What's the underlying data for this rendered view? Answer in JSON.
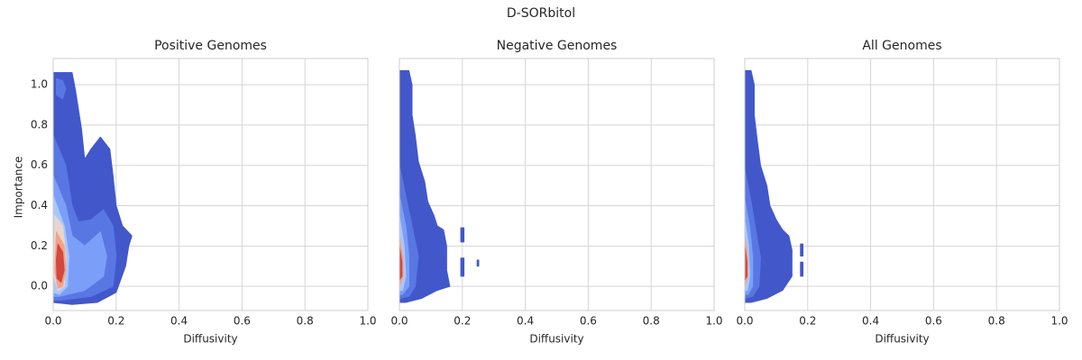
{
  "title": "D-SORbitol",
  "chart_data": [
    {
      "type": "contour",
      "title": "Positive Genomes",
      "xlabel": "Diffusivity",
      "ylabel": "Importance",
      "xlim": [
        0,
        1
      ],
      "ylim": [
        -0.12,
        1.13
      ],
      "xticks": [
        {
          "value": 0,
          "label": "0.0"
        },
        0.2,
        0.4,
        0.6,
        0.8,
        {
          "value": 1,
          "label": "1.0"
        }
      ],
      "yticks": [
        {
          "value": 0,
          "label": "0.0"
        },
        0.2,
        0.4,
        0.6,
        0.8,
        {
          "value": 1,
          "label": "1.0"
        }
      ],
      "grid": true,
      "levels": [
        {
          "color": "#4257c9",
          "polygons": [
            {
              "x": [
                0.0,
                0.06,
                0.07,
                0.09,
                0.1,
                0.12,
                0.15,
                0.18,
                0.19,
                0.2,
                0.22,
                0.25,
                0.24,
                0.23,
                0.2,
                0.14,
                0.06,
                0.0
              ],
              "y": [
                1.06,
                1.06,
                0.98,
                0.78,
                0.63,
                0.68,
                0.74,
                0.68,
                0.55,
                0.4,
                0.3,
                0.25,
                0.2,
                0.1,
                -0.03,
                -0.08,
                -0.09,
                -0.08
              ]
            }
          ]
        },
        {
          "color": "#5977e3",
          "polygons": [
            {
              "x": [
                0.0,
                0.04,
                0.06,
                0.08,
                0.12,
                0.16,
                0.19,
                0.2,
                0.19,
                0.12,
                0.02,
                0.0
              ],
              "y": [
                0.75,
                0.6,
                0.4,
                0.32,
                0.33,
                0.38,
                0.3,
                0.15,
                0.0,
                -0.05,
                -0.07,
                -0.07
              ]
            },
            {
              "x": [
                0.01,
                0.03,
                0.04,
                0.03,
                0.01
              ],
              "y": [
                1.03,
                1.02,
                0.98,
                0.93,
                0.95
              ]
            }
          ]
        },
        {
          "color": "#7b9ff9",
          "polygons": [
            {
              "x": [
                0.0,
                0.04,
                0.06,
                0.1,
                0.15,
                0.17,
                0.16,
                0.1,
                0.02,
                0.0
              ],
              "y": [
                0.55,
                0.4,
                0.25,
                0.2,
                0.27,
                0.15,
                0.05,
                -0.02,
                -0.05,
                -0.05
              ]
            }
          ]
        },
        {
          "color": "#aac7fd",
          "polygons": [
            {
              "x": [
                0.0,
                0.035,
                0.05,
                0.045,
                0.02,
                0.0
              ],
              "y": [
                0.45,
                0.3,
                0.15,
                0.0,
                -0.04,
                -0.03
              ]
            }
          ]
        },
        {
          "color": "#e8d6cc",
          "polygons": [
            {
              "x": [
                0.005,
                0.03,
                0.04,
                0.035,
                0.015,
                0.002
              ],
              "y": [
                0.35,
                0.3,
                0.15,
                0.0,
                -0.02,
                0.05
              ]
            }
          ]
        },
        {
          "color": "#f4a285",
          "polygons": [
            {
              "x": [
                0.01,
                0.035,
                0.04,
                0.03,
                0.015,
                0.005
              ],
              "y": [
                0.27,
                0.2,
                0.08,
                0.0,
                -0.01,
                0.08
              ]
            }
          ]
        },
        {
          "color": "#d1493f",
          "polygons": [
            {
              "x": [
                0.015,
                0.03,
                0.035,
                0.025,
                0.012,
                0.01
              ],
              "y": [
                0.21,
                0.17,
                0.08,
                0.02,
                0.04,
                0.13
              ]
            }
          ]
        }
      ]
    },
    {
      "type": "contour",
      "title": "Negative Genomes",
      "xlabel": "Diffusivity",
      "xlim": [
        0,
        1
      ],
      "ylim": [
        -0.12,
        1.13
      ],
      "sharey": true,
      "xticks": [
        {
          "value": 0,
          "label": "0.0"
        },
        0.2,
        0.4,
        0.6,
        0.8,
        {
          "value": 1,
          "label": "1.0"
        }
      ],
      "grid": true,
      "levels": [
        {
          "color": "#4257c9",
          "polygons": [
            {
              "x": [
                0.0,
                0.03,
                0.04,
                0.04,
                0.05,
                0.06,
                0.08,
                0.09,
                0.11,
                0.12,
                0.14,
                0.15,
                0.15,
                0.16,
                0.12,
                0.07,
                0.02,
                0.0
              ],
              "y": [
                1.07,
                1.07,
                1.0,
                0.85,
                0.75,
                0.62,
                0.52,
                0.42,
                0.35,
                0.3,
                0.28,
                0.2,
                0.08,
                0.0,
                -0.02,
                -0.06,
                -0.08,
                -0.08
              ]
            },
            {
              "x": [
                0.195,
                0.205,
                0.205,
                0.195
              ],
              "y": [
                0.29,
                0.29,
                0.22,
                0.22
              ]
            },
            {
              "x": [
                0.195,
                0.205,
                0.205,
                0.195
              ],
              "y": [
                0.14,
                0.14,
                0.05,
                0.05
              ]
            },
            {
              "x": [
                0.247,
                0.252,
                0.252,
                0.247
              ],
              "y": [
                0.13,
                0.13,
                0.1,
                0.1
              ]
            }
          ]
        },
        {
          "color": "#5977e3",
          "polygons": [
            {
              "x": [
                0.0,
                0.02,
                0.04,
                0.06,
                0.05,
                0.03,
                0.0
              ],
              "y": [
                0.6,
                0.45,
                0.3,
                0.15,
                0.0,
                -0.05,
                -0.06
              ]
            }
          ]
        },
        {
          "color": "#7b9ff9",
          "polygons": [
            {
              "x": [
                0.0,
                0.02,
                0.03,
                0.03,
                0.01,
                0.0
              ],
              "y": [
                0.45,
                0.3,
                0.15,
                0.0,
                -0.04,
                -0.04
              ]
            }
          ]
        },
        {
          "color": "#aac7fd",
          "polygons": [
            {
              "x": [
                0.0,
                0.015,
                0.02,
                0.01,
                0.0
              ],
              "y": [
                0.35,
                0.2,
                0.05,
                -0.02,
                -0.02
              ]
            }
          ]
        },
        {
          "color": "#f4a285",
          "polygons": [
            {
              "x": [
                0.0,
                0.01,
                0.012,
                0.0
              ],
              "y": [
                0.25,
                0.15,
                0.05,
                0.0
              ]
            }
          ]
        },
        {
          "color": "#d1493f",
          "polygons": [
            {
              "x": [
                0.0,
                0.008,
                0.008,
                0.0
              ],
              "y": [
                0.2,
                0.12,
                0.05,
                0.03
              ]
            }
          ]
        }
      ]
    },
    {
      "type": "contour",
      "title": "All Genomes",
      "xlabel": "Diffusivity",
      "xlim": [
        0,
        1
      ],
      "ylim": [
        -0.12,
        1.13
      ],
      "sharey": true,
      "xticks": [
        {
          "value": 0,
          "label": "0.0"
        },
        0.2,
        0.4,
        0.6,
        0.8,
        {
          "value": 1,
          "label": "1.0"
        }
      ],
      "grid": true,
      "levels": [
        {
          "color": "#4257c9",
          "polygons": [
            {
              "x": [
                0.0,
                0.02,
                0.03,
                0.03,
                0.04,
                0.05,
                0.07,
                0.08,
                0.1,
                0.12,
                0.14,
                0.15,
                0.15,
                0.12,
                0.07,
                0.02,
                0.0
              ],
              "y": [
                1.07,
                1.07,
                1.0,
                0.85,
                0.72,
                0.6,
                0.5,
                0.4,
                0.33,
                0.28,
                0.25,
                0.18,
                0.05,
                -0.02,
                -0.06,
                -0.08,
                -0.08
              ]
            },
            {
              "x": [
                0.177,
                0.185,
                0.185,
                0.177
              ],
              "y": [
                0.21,
                0.21,
                0.15,
                0.15
              ]
            },
            {
              "x": [
                0.177,
                0.185,
                0.185,
                0.177
              ],
              "y": [
                0.12,
                0.12,
                0.05,
                0.05
              ]
            }
          ]
        },
        {
          "color": "#5977e3",
          "polygons": [
            {
              "x": [
                0.0,
                0.02,
                0.035,
                0.05,
                0.045,
                0.025,
                0.0
              ],
              "y": [
                0.58,
                0.42,
                0.28,
                0.14,
                0.0,
                -0.05,
                -0.06
              ]
            }
          ]
        },
        {
          "color": "#7b9ff9",
          "polygons": [
            {
              "x": [
                0.0,
                0.015,
                0.025,
                0.025,
                0.01,
                0.0
              ],
              "y": [
                0.43,
                0.3,
                0.15,
                0.0,
                -0.04,
                -0.04
              ]
            }
          ]
        },
        {
          "color": "#aac7fd",
          "polygons": [
            {
              "x": [
                0.0,
                0.012,
                0.016,
                0.008,
                0.0
              ],
              "y": [
                0.33,
                0.2,
                0.05,
                -0.02,
                -0.02
              ]
            }
          ]
        },
        {
          "color": "#f4a285",
          "polygons": [
            {
              "x": [
                0.0,
                0.009,
                0.01,
                0.0
              ],
              "y": [
                0.25,
                0.15,
                0.05,
                0.0
              ]
            }
          ]
        },
        {
          "color": "#d1493f",
          "polygons": [
            {
              "x": [
                0.0,
                0.007,
                0.007,
                0.0
              ],
              "y": [
                0.2,
                0.12,
                0.05,
                0.03
              ]
            }
          ]
        }
      ]
    }
  ]
}
